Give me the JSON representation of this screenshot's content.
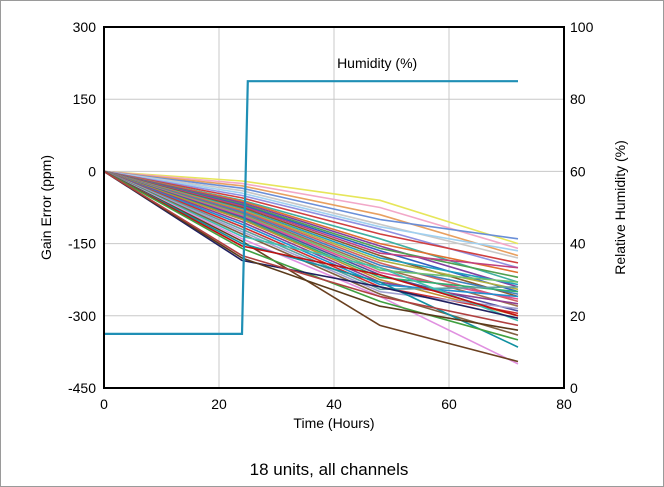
{
  "chart_data": {
    "type": "line",
    "title": "",
    "caption": "18 units, all channels",
    "xlabel": "Time (Hours)",
    "ylabel": "Gain Error (ppm)",
    "y2label": "Relative Humidity (%)",
    "xlim": [
      0,
      80
    ],
    "ylim": [
      -450,
      300
    ],
    "y2lim": [
      0,
      100
    ],
    "x_ticks": [
      "0",
      "20",
      "40",
      "60",
      "80"
    ],
    "y_ticks": [
      "300",
      "150",
      "0",
      "-150",
      "-300",
      "-450"
    ],
    "y2_ticks": [
      "100",
      "80",
      "60",
      "40",
      "20",
      "0"
    ],
    "grid": true,
    "legend": "none",
    "annotation": "Humidity (%)",
    "humidity_series": {
      "name": "Humidity (%)",
      "axis": "right",
      "color": "#1f8fb5",
      "x": [
        0,
        24,
        25,
        72
      ],
      "y": [
        15,
        15,
        85,
        85
      ]
    },
    "gain_error_series": [
      {
        "color": "#e6e65a",
        "x": [
          0,
          24,
          48,
          72
        ],
        "y": [
          0,
          -20,
          -60,
          -150
        ]
      },
      {
        "color": "#f2a8c8",
        "x": [
          0,
          24,
          48,
          72
        ],
        "y": [
          0,
          -25,
          -75,
          -160
        ]
      },
      {
        "color": "#e8a060",
        "x": [
          0,
          24,
          48,
          72
        ],
        "y": [
          0,
          -30,
          -90,
          -175
        ]
      },
      {
        "color": "#6a8fd8",
        "x": [
          0,
          24,
          48,
          72
        ],
        "y": [
          0,
          -35,
          -100,
          -140
        ]
      },
      {
        "color": "#c8c8c8",
        "x": [
          0,
          24,
          48,
          72
        ],
        "y": [
          0,
          -40,
          -110,
          -180
        ]
      },
      {
        "color": "#a0d0f0",
        "x": [
          0,
          24,
          48,
          72
        ],
        "y": [
          0,
          -45,
          -115,
          -165
        ]
      },
      {
        "color": "#9090e0",
        "x": [
          0,
          24,
          48,
          72
        ],
        "y": [
          0,
          -50,
          -120,
          -200
        ]
      },
      {
        "color": "#d04040",
        "x": [
          0,
          24,
          48,
          72
        ],
        "y": [
          0,
          -55,
          -130,
          -190
        ]
      },
      {
        "color": "#40b0a0",
        "x": [
          0,
          24,
          48,
          72
        ],
        "y": [
          0,
          -60,
          -140,
          -230
        ]
      },
      {
        "color": "#e07030",
        "x": [
          0,
          24,
          48,
          72
        ],
        "y": [
          0,
          -62,
          -150,
          -210
        ]
      },
      {
        "color": "#8040a0",
        "x": [
          0,
          24,
          48,
          72
        ],
        "y": [
          0,
          -65,
          -155,
          -240
        ]
      },
      {
        "color": "#50a050",
        "x": [
          0,
          24,
          48,
          72
        ],
        "y": [
          0,
          -68,
          -160,
          -220
        ]
      },
      {
        "color": "#3060c0",
        "x": [
          0,
          24,
          48,
          72
        ],
        "y": [
          0,
          -70,
          -165,
          -250
        ]
      },
      {
        "color": "#c04080",
        "x": [
          0,
          24,
          48,
          72
        ],
        "y": [
          0,
          -72,
          -170,
          -200
        ]
      },
      {
        "color": "#8a5a2a",
        "x": [
          0,
          24,
          48,
          72
        ],
        "y": [
          0,
          -75,
          -175,
          -260
        ]
      },
      {
        "color": "#20a0c0",
        "x": [
          0,
          24,
          48,
          72
        ],
        "y": [
          0,
          -78,
          -180,
          -235
        ]
      },
      {
        "color": "#b0b040",
        "x": [
          0,
          24,
          48,
          72
        ],
        "y": [
          0,
          -80,
          -185,
          -245
        ]
      },
      {
        "color": "#d06060",
        "x": [
          0,
          24,
          48,
          72
        ],
        "y": [
          0,
          -82,
          -190,
          -270
        ]
      },
      {
        "color": "#4080c0",
        "x": [
          0,
          24,
          48,
          72
        ],
        "y": [
          0,
          -85,
          -195,
          -255
        ]
      },
      {
        "color": "#a07050",
        "x": [
          0,
          24,
          48,
          72
        ],
        "y": [
          0,
          -88,
          -200,
          -280
        ]
      },
      {
        "color": "#70c070",
        "x": [
          0,
          24,
          48,
          72
        ],
        "y": [
          0,
          -90,
          -205,
          -230
        ]
      },
      {
        "color": "#e05090",
        "x": [
          0,
          24,
          48,
          72
        ],
        "y": [
          0,
          -92,
          -210,
          -265
        ]
      },
      {
        "color": "#5050a0",
        "x": [
          0,
          24,
          48,
          72
        ],
        "y": [
          0,
          -95,
          -215,
          -290
        ]
      },
      {
        "color": "#30b070",
        "x": [
          0,
          24,
          48,
          72
        ],
        "y": [
          0,
          -98,
          -220,
          -250
        ]
      },
      {
        "color": "#c09030",
        "x": [
          0,
          24,
          48,
          72
        ],
        "y": [
          0,
          -100,
          -225,
          -300
        ]
      },
      {
        "color": "#904090",
        "x": [
          0,
          24,
          48,
          72
        ],
        "y": [
          0,
          -105,
          -230,
          -275
        ]
      },
      {
        "color": "#2090d0",
        "x": [
          0,
          24,
          48,
          72
        ],
        "y": [
          0,
          -110,
          -235,
          -260
        ]
      },
      {
        "color": "#d03030",
        "x": [
          0,
          24,
          48,
          72
        ],
        "y": [
          0,
          -115,
          -240,
          -295
        ]
      },
      {
        "color": "#60a0a0",
        "x": [
          0,
          24,
          48,
          72
        ],
        "y": [
          0,
          -120,
          -245,
          -240
        ]
      },
      {
        "color": "#a0a0d0",
        "x": [
          0,
          24,
          48,
          72
        ],
        "y": [
          0,
          -125,
          -250,
          -285
        ]
      },
      {
        "color": "#806040",
        "x": [
          0,
          24,
          48,
          72
        ],
        "y": [
          0,
          -130,
          -255,
          -340
        ]
      },
      {
        "color": "#40c0b0",
        "x": [
          0,
          24,
          48,
          72
        ],
        "y": [
          0,
          -135,
          -200,
          -310
        ]
      },
      {
        "color": "#e090e0",
        "x": [
          0,
          24,
          48,
          72
        ],
        "y": [
          0,
          -140,
          -260,
          -400
        ]
      },
      {
        "color": "#6a4020",
        "x": [
          0,
          24,
          48,
          72
        ],
        "y": [
          0,
          -145,
          -320,
          -395
        ]
      },
      {
        "color": "#1090a0",
        "x": [
          0,
          24,
          48,
          72
        ],
        "y": [
          0,
          -150,
          -230,
          -365
        ]
      },
      {
        "color": "#c01010",
        "x": [
          0,
          24,
          48,
          72
        ],
        "y": [
          0,
          -155,
          -215,
          -300
        ]
      },
      {
        "color": "#40a040",
        "x": [
          0,
          24,
          48,
          72
        ],
        "y": [
          0,
          -160,
          -270,
          -350
        ]
      },
      {
        "color": "#202060",
        "x": [
          0,
          24,
          48,
          72
        ],
        "y": [
          0,
          -185,
          -240,
          -305
        ]
      },
      {
        "color": "#5a3a1a",
        "x": [
          0,
          24,
          48,
          72
        ],
        "y": [
          0,
          -180,
          -280,
          -330
        ]
      },
      {
        "color": "#b04040",
        "x": [
          0,
          24,
          48,
          72
        ],
        "y": [
          0,
          -175,
          -260,
          -320
        ]
      }
    ]
  }
}
